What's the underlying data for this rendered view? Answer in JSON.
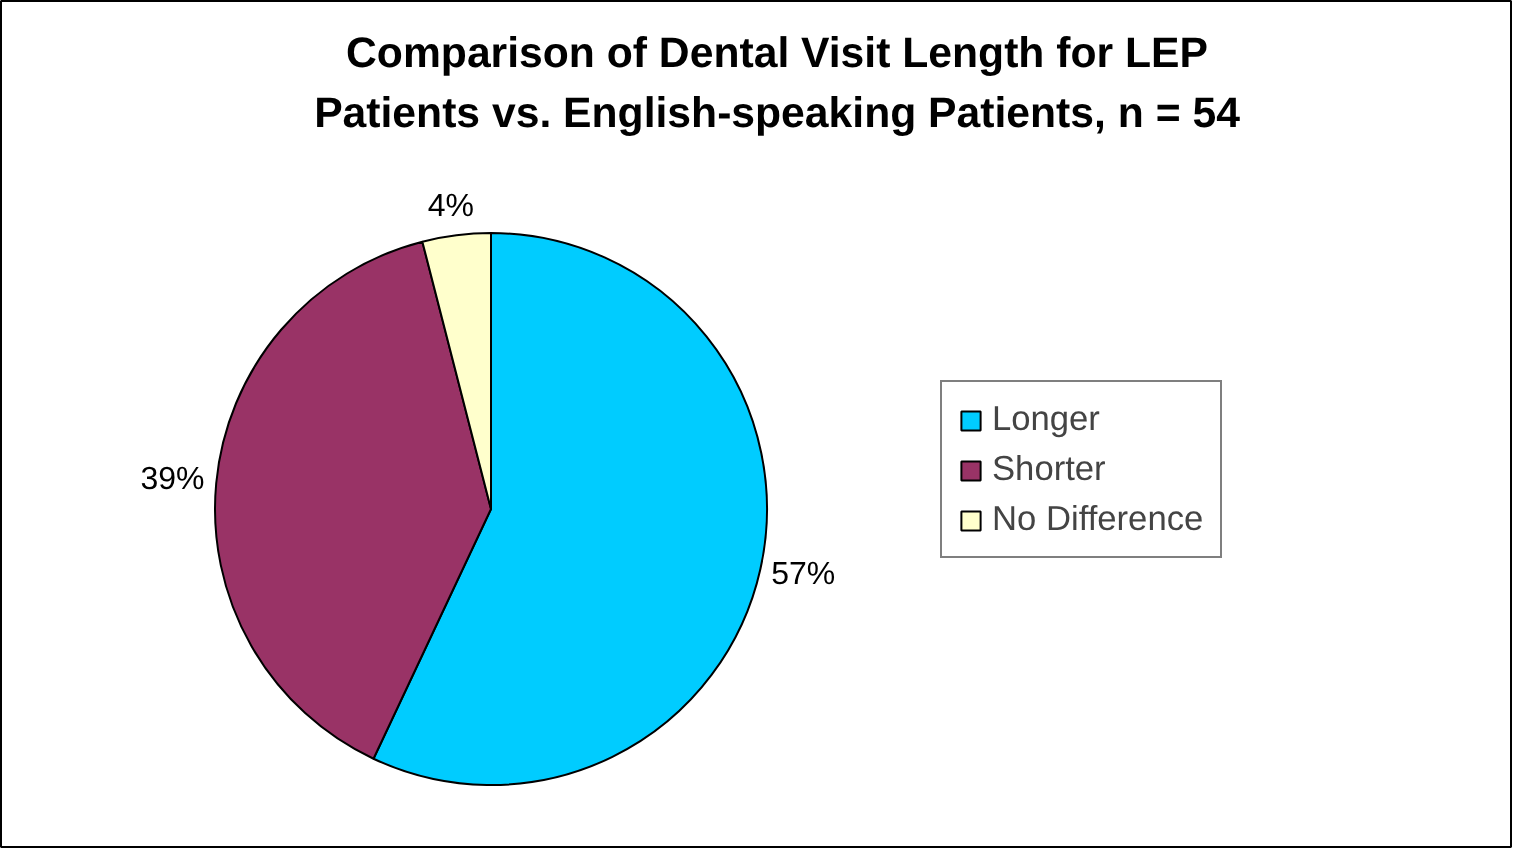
{
  "chart_data": {
    "type": "pie",
    "title": "Comparison of Dental Visit Length for LEP\nPatients vs. English-speaking Patients, n = 54",
    "categories": [
      "Longer",
      "Shorter",
      "No Difference"
    ],
    "values": [
      57,
      39,
      4
    ],
    "value_labels": [
      "57%",
      "39%",
      "4%"
    ],
    "colors": [
      "#00ccff",
      "#993366",
      "#ffffcc"
    ],
    "legend": "right"
  }
}
